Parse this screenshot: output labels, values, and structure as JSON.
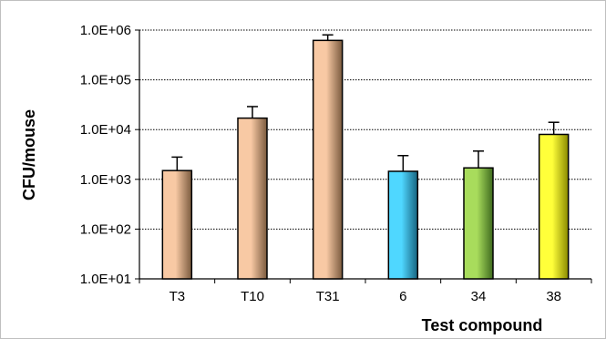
{
  "chart_data": {
    "type": "bar",
    "title": "",
    "xlabel": "Test compound",
    "ylabel": "CFU/mouse",
    "yscale": "log",
    "ylim": [
      10,
      1000000
    ],
    "ytick_values": [
      10,
      100,
      1000,
      10000,
      100000,
      1000000
    ],
    "ytick_labels": [
      "1.0E+01",
      "1.0E+02",
      "1.0E+03",
      "1.0E+04",
      "1.0E+05",
      "1.0E+06"
    ],
    "grid": "horizontal dotted",
    "legend": "none",
    "categories": [
      "T3",
      "T10",
      "T31",
      "6",
      "34",
      "38"
    ],
    "values": [
      1500,
      17000,
      620000,
      1450,
      1700,
      8000
    ],
    "error_upper": [
      2800,
      29000,
      800000,
      3000,
      3700,
      14000
    ],
    "bar_colors": [
      {
        "light": "#f8c9a4",
        "dark": "#7a5a3e"
      },
      {
        "light": "#f8c9a4",
        "dark": "#7a5a3e"
      },
      {
        "light": "#f8c9a4",
        "dark": "#7a5a3e"
      },
      {
        "light": "#4fd7ff",
        "dark": "#17637f"
      },
      {
        "light": "#a8dc5c",
        "dark": "#3e6a1e"
      },
      {
        "light": "#ffff3a",
        "dark": "#8a8a00"
      }
    ]
  }
}
